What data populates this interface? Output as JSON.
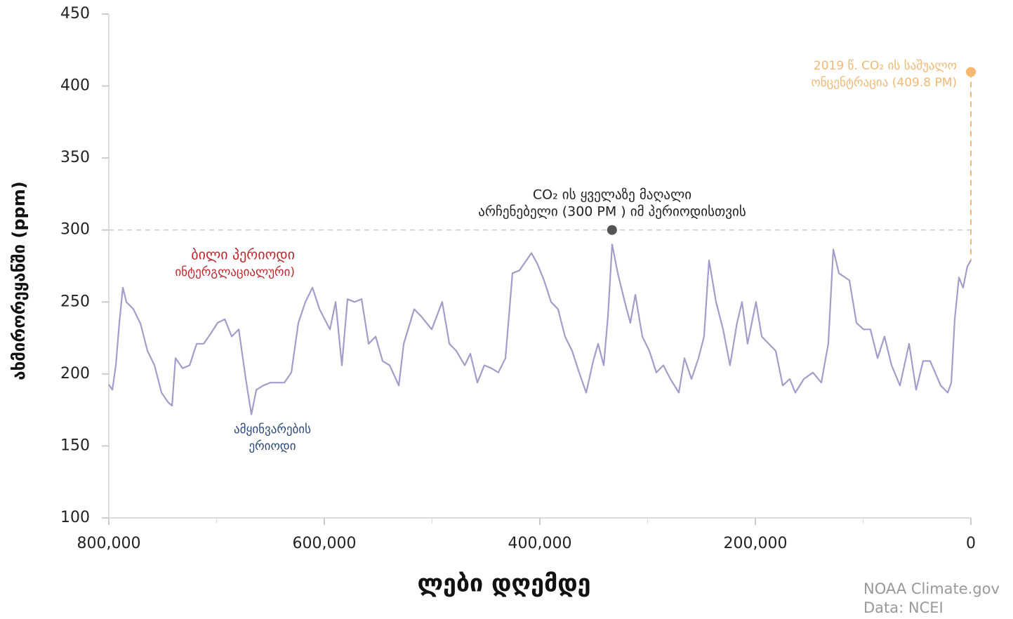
{
  "chart_data": {
    "type": "line",
    "ylabel": "ახმირორეყანში (ppm)",
    "xlabel": "ლები დღემდე",
    "source": [
      "NOAA Climate.gov",
      "Data: NCEI"
    ],
    "xlim": [
      800000,
      0
    ],
    "ylim": [
      100,
      450
    ],
    "xticks": [
      {
        "value": 800000,
        "label": "800,000"
      },
      {
        "value": 600000,
        "label": "600,000"
      },
      {
        "value": 400000,
        "label": "400,000"
      },
      {
        "value": 200000,
        "label": "200,000"
      },
      0
    ],
    "xminorticks": [
      700000,
      500000,
      300000,
      100000
    ],
    "yticks": [
      100,
      150,
      200,
      250,
      300,
      350,
      400,
      450
    ],
    "x": [
      800000,
      796700,
      793500,
      790200,
      787000,
      783700,
      777200,
      770600,
      764100,
      757600,
      751100,
      744600,
      741300,
      738100,
      731500,
      725000,
      718500,
      712000,
      705500,
      699000,
      692400,
      685900,
      679400,
      672900,
      667700,
      663100,
      656600,
      650100,
      643600,
      637100,
      630600,
      624100,
      617600,
      611000,
      604500,
      594800,
      589500,
      583700,
      578500,
      571900,
      565400,
      558900,
      552400,
      545900,
      539400,
      530900,
      526300,
      516600,
      510100,
      500300,
      490600,
      484000,
      477500,
      469700,
      464500,
      458000,
      451500,
      445000,
      438500,
      431900,
      425400,
      418900,
      412400,
      407800,
      402600,
      396100,
      389600,
      383100,
      376600,
      370000,
      363500,
      357000,
      350500,
      345900,
      340700,
      336800,
      332900,
      327700,
      321200,
      316000,
      311400,
      304900,
      298400,
      291900,
      285400,
      278800,
      271000,
      265800,
      259300,
      252800,
      247600,
      243000,
      236500,
      230000,
      223500,
      217000,
      212400,
      207200,
      199400,
      194100,
      187600,
      181100,
      174600,
      168100,
      162900,
      155000,
      146600,
      138800,
      132300,
      127700,
      122500,
      112700,
      106200,
      99700,
      93200,
      86600,
      80100,
      73600,
      65800,
      57300,
      50800,
      44300,
      37800,
      28000,
      21500,
      18200,
      15000,
      11100,
      7200,
      3300,
      0
    ],
    "series": [
      {
        "name": "CO2",
        "color": "#a29ecb",
        "values": [
          192.6,
          189,
          206,
          235.5,
          260,
          250,
          245,
          235,
          216,
          206,
          187,
          180,
          178,
          211,
          204,
          206,
          221,
          221,
          228,
          235.5,
          238,
          226,
          231,
          196.5,
          172,
          189,
          192,
          194,
          194,
          194,
          201,
          235.5,
          250,
          260,
          245,
          231,
          250,
          206,
          252,
          250,
          252,
          221,
          226,
          209,
          206,
          192,
          221,
          245,
          240,
          231,
          250,
          221,
          216,
          206,
          214,
          194,
          206,
          204,
          201,
          211,
          270,
          272,
          279,
          284,
          277,
          265,
          250,
          245,
          226,
          216,
          201,
          187,
          209,
          221,
          206,
          240,
          290,
          270,
          250,
          235.5,
          255,
          226,
          216,
          201,
          206,
          196.5,
          187,
          211,
          196.5,
          211,
          226,
          279,
          250,
          231,
          206,
          235.5,
          250,
          221,
          250,
          226,
          221,
          216,
          192,
          196.5,
          187,
          196.5,
          201,
          194,
          221,
          286.5,
          270,
          265,
          235.5,
          231,
          231,
          211,
          226,
          206,
          192,
          221,
          189,
          209,
          209,
          192,
          187,
          194,
          238,
          267,
          260,
          274.5,
          279
        ]
      }
    ],
    "highlights": [
      {
        "x": 333000,
        "y": 300,
        "color": "#555555",
        "lines": [
          "CO₂ ის ყველაზე მაღალი",
          "არჩენებელი (300 PM ) იმ პერიოდისთვის"
        ]
      },
      {
        "x": 0,
        "y": 409.8,
        "color": "#f5b872",
        "lines": [
          "2019 წ. CO₂ ის საშუალო",
          "ონცენტრაცია (409.8 PM)"
        ]
      }
    ],
    "annotations": [
      {
        "color": "#c0272d",
        "lines": [
          "ბილი პერიოდი",
          "ინტერგლაციალური)"
        ]
      },
      {
        "color": "#2e4a7a",
        "lines": [
          "ამყინვარების",
          "ერიოდი"
        ]
      }
    ]
  }
}
